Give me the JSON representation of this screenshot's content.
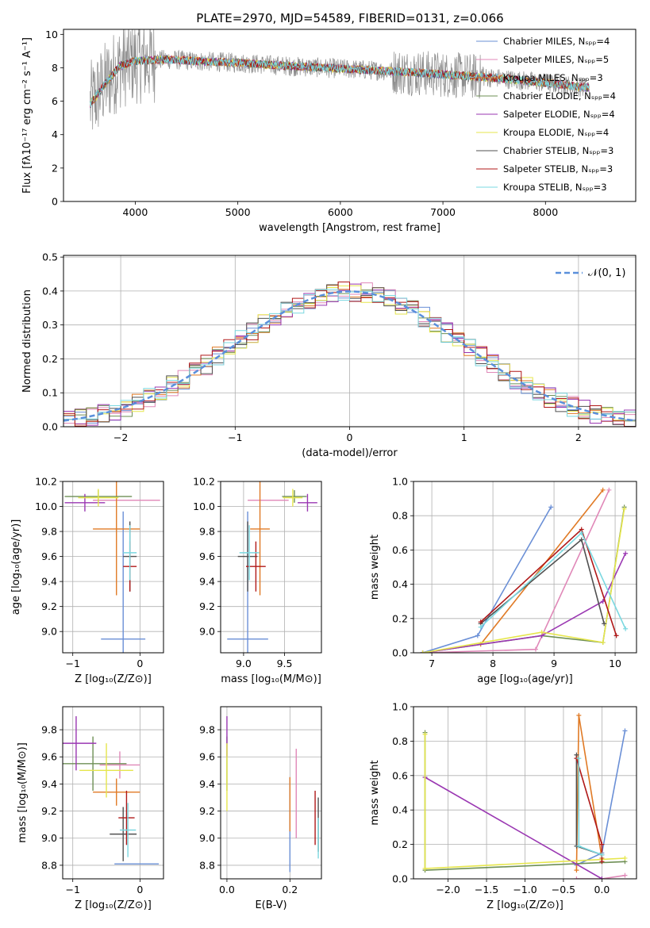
{
  "page": {
    "title": "PLATE=2970, MJD=54589, FIBERID=0131, z=0.066"
  },
  "legend_top": [
    "Chabrier MILES, Nₛₚₚ=4",
    "Salpeter MILES, Nₛₚₚ=5",
    "Kroupa MILES, Nₛₚₚ=3",
    "Chabrier ELODIE, Nₛₚₚ=4",
    "Salpeter ELODIE, Nₛₚₚ=4",
    "Kroupa ELODIE, Nₛₚₚ=4",
    "Chabrier STELIB, Nₛₚₚ=3",
    "Salpeter STELIB, Nₛₚₚ=3",
    "Kroupa STELIB, Nₛₚₚ=3"
  ],
  "colors": {
    "series": [
      "#6a8fd6",
      "#e088b8",
      "#e07a25",
      "#6e8f55",
      "#9a37b2",
      "#e6e64c",
      "#505050",
      "#b01818",
      "#7ad8e0"
    ],
    "data_gray": "#8c8c8c",
    "normal_dashed": "#5a8fdb",
    "grid": "#b0b0b0"
  },
  "chart_data": [
    {
      "type": "line",
      "id": "spectrum",
      "title": "PLATE=2970, MJD=54589, FIBERID=0131, z=0.066",
      "xlabel": "wavelength [Angstrom, rest frame]",
      "ylabel": "Flux [fλ10⁻¹⁷ erg cm⁻² s⁻¹ A⁻¹]",
      "xlim": [
        3300,
        8880
      ],
      "ylim": [
        0,
        10.3
      ],
      "xticks": [
        "4000",
        "5000",
        "6000",
        "7000",
        "8000"
      ],
      "yticks": [
        "0",
        "2",
        "4",
        "6",
        "8",
        "10"
      ],
      "grid": false,
      "legend": "top-right",
      "data_range": [
        3560,
        8430
      ],
      "continuum": [
        [
          3560,
          5.8
        ],
        [
          3700,
          7.0
        ],
        [
          3850,
          8.1
        ],
        [
          4000,
          8.4
        ],
        [
          4300,
          8.5
        ],
        [
          4600,
          8.4
        ],
        [
          5000,
          8.3
        ],
        [
          5500,
          8.1
        ],
        [
          6000,
          7.95
        ],
        [
          6500,
          7.8
        ],
        [
          7000,
          7.6
        ],
        [
          7500,
          7.4
        ],
        [
          8000,
          7.1
        ],
        [
          8430,
          6.8
        ]
      ]
    },
    {
      "type": "bar",
      "id": "residuals",
      "xlabel": "(data-model)/error",
      "ylabel": "Normed distribution",
      "xlim": [
        -2.5,
        2.5
      ],
      "ylim": [
        0,
        0.505
      ],
      "xticks": [
        "−2",
        "−1",
        "0",
        "1",
        "2"
      ],
      "yticks": [
        "0.0",
        "0.1",
        "0.2",
        "0.3",
        "0.4",
        "0.5"
      ],
      "grid": true,
      "legend": "top-right",
      "normal_label": "𝒩(0, 1)",
      "bin_width": 0.1
    },
    {
      "type": "scatter",
      "id": "age-vs-Z",
      "xlabel": "Z [log₁₀(Z/Z⊙)]",
      "ylabel": "age  [log₁₀(age/yr)]",
      "xlim": [
        -1.15,
        0.35
      ],
      "ylim": [
        8.83,
        10.2
      ],
      "xticks": [
        "−1",
        "0"
      ],
      "yticks": [
        "9.0",
        "9.2",
        "9.4",
        "9.6",
        "9.8",
        "10.0",
        "10.2"
      ],
      "grid": true,
      "points": [
        {
          "x": -0.25,
          "xerr": 0.33,
          "y": 8.94,
          "yerr": 1.02
        },
        {
          "x": -0.2,
          "xerr": 0.5,
          "y": 10.05,
          "yerr": 0.0
        },
        {
          "x": -0.35,
          "xerr": 0.35,
          "y": 9.82,
          "yerr": 0.53
        },
        {
          "x": -0.62,
          "xerr": 0.5,
          "y": 10.08,
          "yerr": 0.05
        },
        {
          "x": -0.82,
          "xerr": 0.3,
          "y": 10.03,
          "yerr": 0.07
        },
        {
          "x": -0.62,
          "xerr": 0.3,
          "y": 10.07,
          "yerr": 0.07
        },
        {
          "x": -0.15,
          "xerr": 0.1,
          "y": 9.6,
          "yerr": 0.28
        },
        {
          "x": -0.15,
          "xerr": 0.1,
          "y": 9.52,
          "yerr": 0.2
        },
        {
          "x": -0.15,
          "xerr": 0.1,
          "y": 9.63,
          "yerr": 0.22
        }
      ]
    },
    {
      "type": "scatter",
      "id": "age-vs-mass",
      "xlabel": "mass [log₁₀(M/M⊙)]",
      "xlim": [
        8.72,
        9.95
      ],
      "ylim": [
        8.83,
        10.2
      ],
      "xticks": [
        "9.0",
        "9.5"
      ],
      "yticks": [
        "9.0",
        "9.2",
        "9.4",
        "9.6",
        "9.8",
        "10.0",
        "10.2"
      ],
      "grid": true,
      "points": [
        {
          "x": 9.05,
          "xerr": 0.25,
          "y": 8.94,
          "yerr": 1.02
        },
        {
          "x": 9.3,
          "xerr": 0.25,
          "y": 10.05,
          "yerr": 0.0
        },
        {
          "x": 9.2,
          "xerr": 0.12,
          "y": 9.82,
          "yerr": 0.53
        },
        {
          "x": 9.62,
          "xerr": 0.15,
          "y": 10.08,
          "yerr": 0.05
        },
        {
          "x": 9.78,
          "xerr": 0.12,
          "y": 10.03,
          "yerr": 0.07
        },
        {
          "x": 9.6,
          "xerr": 0.12,
          "y": 10.07,
          "yerr": 0.07
        },
        {
          "x": 9.05,
          "xerr": 0.12,
          "y": 9.6,
          "yerr": 0.28
        },
        {
          "x": 9.15,
          "xerr": 0.12,
          "y": 9.52,
          "yerr": 0.2
        },
        {
          "x": 9.07,
          "xerr": 0.12,
          "y": 9.63,
          "yerr": 0.22
        }
      ]
    },
    {
      "type": "line",
      "id": "massweight-vs-age",
      "xlabel": "age  [log₁₀(age/yr)]",
      "ylabel": "mass weight",
      "xlim": [
        6.7,
        10.35
      ],
      "ylim": [
        0,
        1.0
      ],
      "xticks": [
        "7",
        "8",
        "9",
        "10"
      ],
      "yticks": [
        "0.0",
        "0.2",
        "0.4",
        "0.6",
        "0.8",
        "1.0"
      ],
      "grid": true,
      "series": [
        {
          "x": [
            6.85,
            7.75,
            8.95
          ],
          "y": [
            0.0,
            0.1,
            0.85
          ]
        },
        {
          "x": [
            6.85,
            8.7,
            9.9
          ],
          "y": [
            0.0,
            0.02,
            0.95
          ]
        },
        {
          "x": [
            7.8,
            9.8
          ],
          "y": [
            0.05,
            0.95
          ]
        },
        {
          "x": [
            6.85,
            8.8,
            9.8,
            10.15
          ],
          "y": [
            0.0,
            0.1,
            0.06,
            0.85
          ]
        },
        {
          "x": [
            6.85,
            8.8,
            9.8,
            10.17
          ],
          "y": [
            0.0,
            0.1,
            0.3,
            0.58
          ]
        },
        {
          "x": [
            6.85,
            8.8,
            9.8,
            10.15
          ],
          "y": [
            0.0,
            0.12,
            0.06,
            0.84
          ]
        },
        {
          "x": [
            7.8,
            9.45,
            9.82
          ],
          "y": [
            0.17,
            0.66,
            0.17
          ]
        },
        {
          "x": [
            7.8,
            9.45,
            10.02
          ],
          "y": [
            0.18,
            0.72,
            0.1
          ]
        },
        {
          "x": [
            7.8,
            9.45,
            10.17
          ],
          "y": [
            0.15,
            0.7,
            0.14
          ]
        }
      ]
    },
    {
      "type": "scatter",
      "id": "mass-vs-Z",
      "xlabel": "Z [log₁₀(Z/Z⊙)]",
      "ylabel": "mass [log₁₀(M/M⊙)]",
      "xlim": [
        -1.15,
        0.35
      ],
      "ylim": [
        8.7,
        9.97
      ],
      "xticks": [
        "−1",
        "0"
      ],
      "yticks": [
        "8.8",
        "9.0",
        "9.2",
        "9.4",
        "9.6",
        "9.8"
      ],
      "grid": true,
      "points": [
        {
          "x": -0.05,
          "xerr": 0.33,
          "y": 8.81,
          "yerr": 0.0
        },
        {
          "x": -0.3,
          "xerr": 0.3,
          "y": 9.54,
          "yerr": 0.1
        },
        {
          "x": -0.35,
          "xerr": 0.35,
          "y": 9.34,
          "yerr": 0.1
        },
        {
          "x": -0.7,
          "xerr": 0.5,
          "y": 9.55,
          "yerr": 0.2
        },
        {
          "x": -0.95,
          "xerr": 0.3,
          "y": 9.7,
          "yerr": 0.2
        },
        {
          "x": -0.5,
          "xerr": 0.4,
          "y": 9.5,
          "yerr": 0.2
        },
        {
          "x": -0.25,
          "xerr": 0.2,
          "y": 9.03,
          "yerr": 0.2
        },
        {
          "x": -0.2,
          "xerr": 0.12,
          "y": 9.15,
          "yerr": 0.2
        },
        {
          "x": -0.18,
          "xerr": 0.12,
          "y": 9.06,
          "yerr": 0.2
        }
      ]
    },
    {
      "type": "scatter",
      "id": "mass-vs-EBV",
      "xlabel": "E(B-V)",
      "xlim": [
        -0.02,
        0.3
      ],
      "ylim": [
        8.7,
        9.97
      ],
      "xticks": [
        "0.0",
        "0.2"
      ],
      "yticks": [
        "8.8",
        "9.0",
        "9.2",
        "9.4",
        "9.6",
        "9.8"
      ],
      "grid": true,
      "points": [
        {
          "x": 0.2,
          "y": 9.1,
          "yerr": 0.35
        },
        {
          "x": 0.22,
          "y": 9.33,
          "yerr": 0.33
        },
        {
          "x": 0.2,
          "y": 9.25,
          "yerr": 0.2
        },
        {
          "x": 0.0,
          "y": 9.55,
          "yerr": 0.2
        },
        {
          "x": 0.0,
          "y": 9.75,
          "yerr": 0.15
        },
        {
          "x": 0.0,
          "y": 9.45,
          "yerr": 0.25
        },
        {
          "x": 0.29,
          "y": 9.1,
          "yerr": 0.2
        },
        {
          "x": 0.28,
          "y": 9.15,
          "yerr": 0.2
        },
        {
          "x": 0.29,
          "y": 9.0,
          "yerr": 0.15
        }
      ]
    },
    {
      "type": "line",
      "id": "massweight-vs-Z",
      "xlabel": "Z [log₁₀(Z/Z⊙)]",
      "ylabel": "mass weight",
      "xlim": [
        -2.45,
        0.45
      ],
      "ylim": [
        0,
        1.0
      ],
      "xticks": [
        "−2.0",
        "−1.5",
        "−1.0",
        "−0.5",
        "0.0"
      ],
      "yticks": [
        "0.0",
        "0.2",
        "0.4",
        "0.6",
        "0.8",
        "1.0"
      ],
      "grid": true,
      "series": [
        {
          "x": [
            -0.33,
            0.0,
            0.3
          ],
          "y": [
            0.08,
            0.15,
            0.86
          ]
        },
        {
          "x": [
            -0.33,
            0.0,
            0.3
          ],
          "y": [
            0.0,
            0.0,
            0.02
          ]
        },
        {
          "x": [
            -0.33,
            -0.3,
            0.0
          ],
          "y": [
            0.05,
            0.95,
            0.12
          ]
        },
        {
          "x": [
            -2.3,
            -2.3,
            0.3
          ],
          "y": [
            0.85,
            0.05,
            0.1
          ]
        },
        {
          "x": [
            -2.3,
            0.0
          ],
          "y": [
            0.59,
            0.0
          ]
        },
        {
          "x": [
            -2.3,
            -2.3,
            0.3
          ],
          "y": [
            0.84,
            0.06,
            0.12
          ]
        },
        {
          "x": [
            -0.33,
            -0.33,
            0.0
          ],
          "y": [
            0.72,
            0.19,
            0.14
          ]
        },
        {
          "x": [
            -0.33,
            0.0,
            0.0
          ],
          "y": [
            0.7,
            0.2,
            0.1
          ]
        },
        {
          "x": [
            -0.3,
            -0.3,
            0.0
          ],
          "y": [
            0.7,
            0.19,
            0.14
          ]
        }
      ]
    }
  ]
}
